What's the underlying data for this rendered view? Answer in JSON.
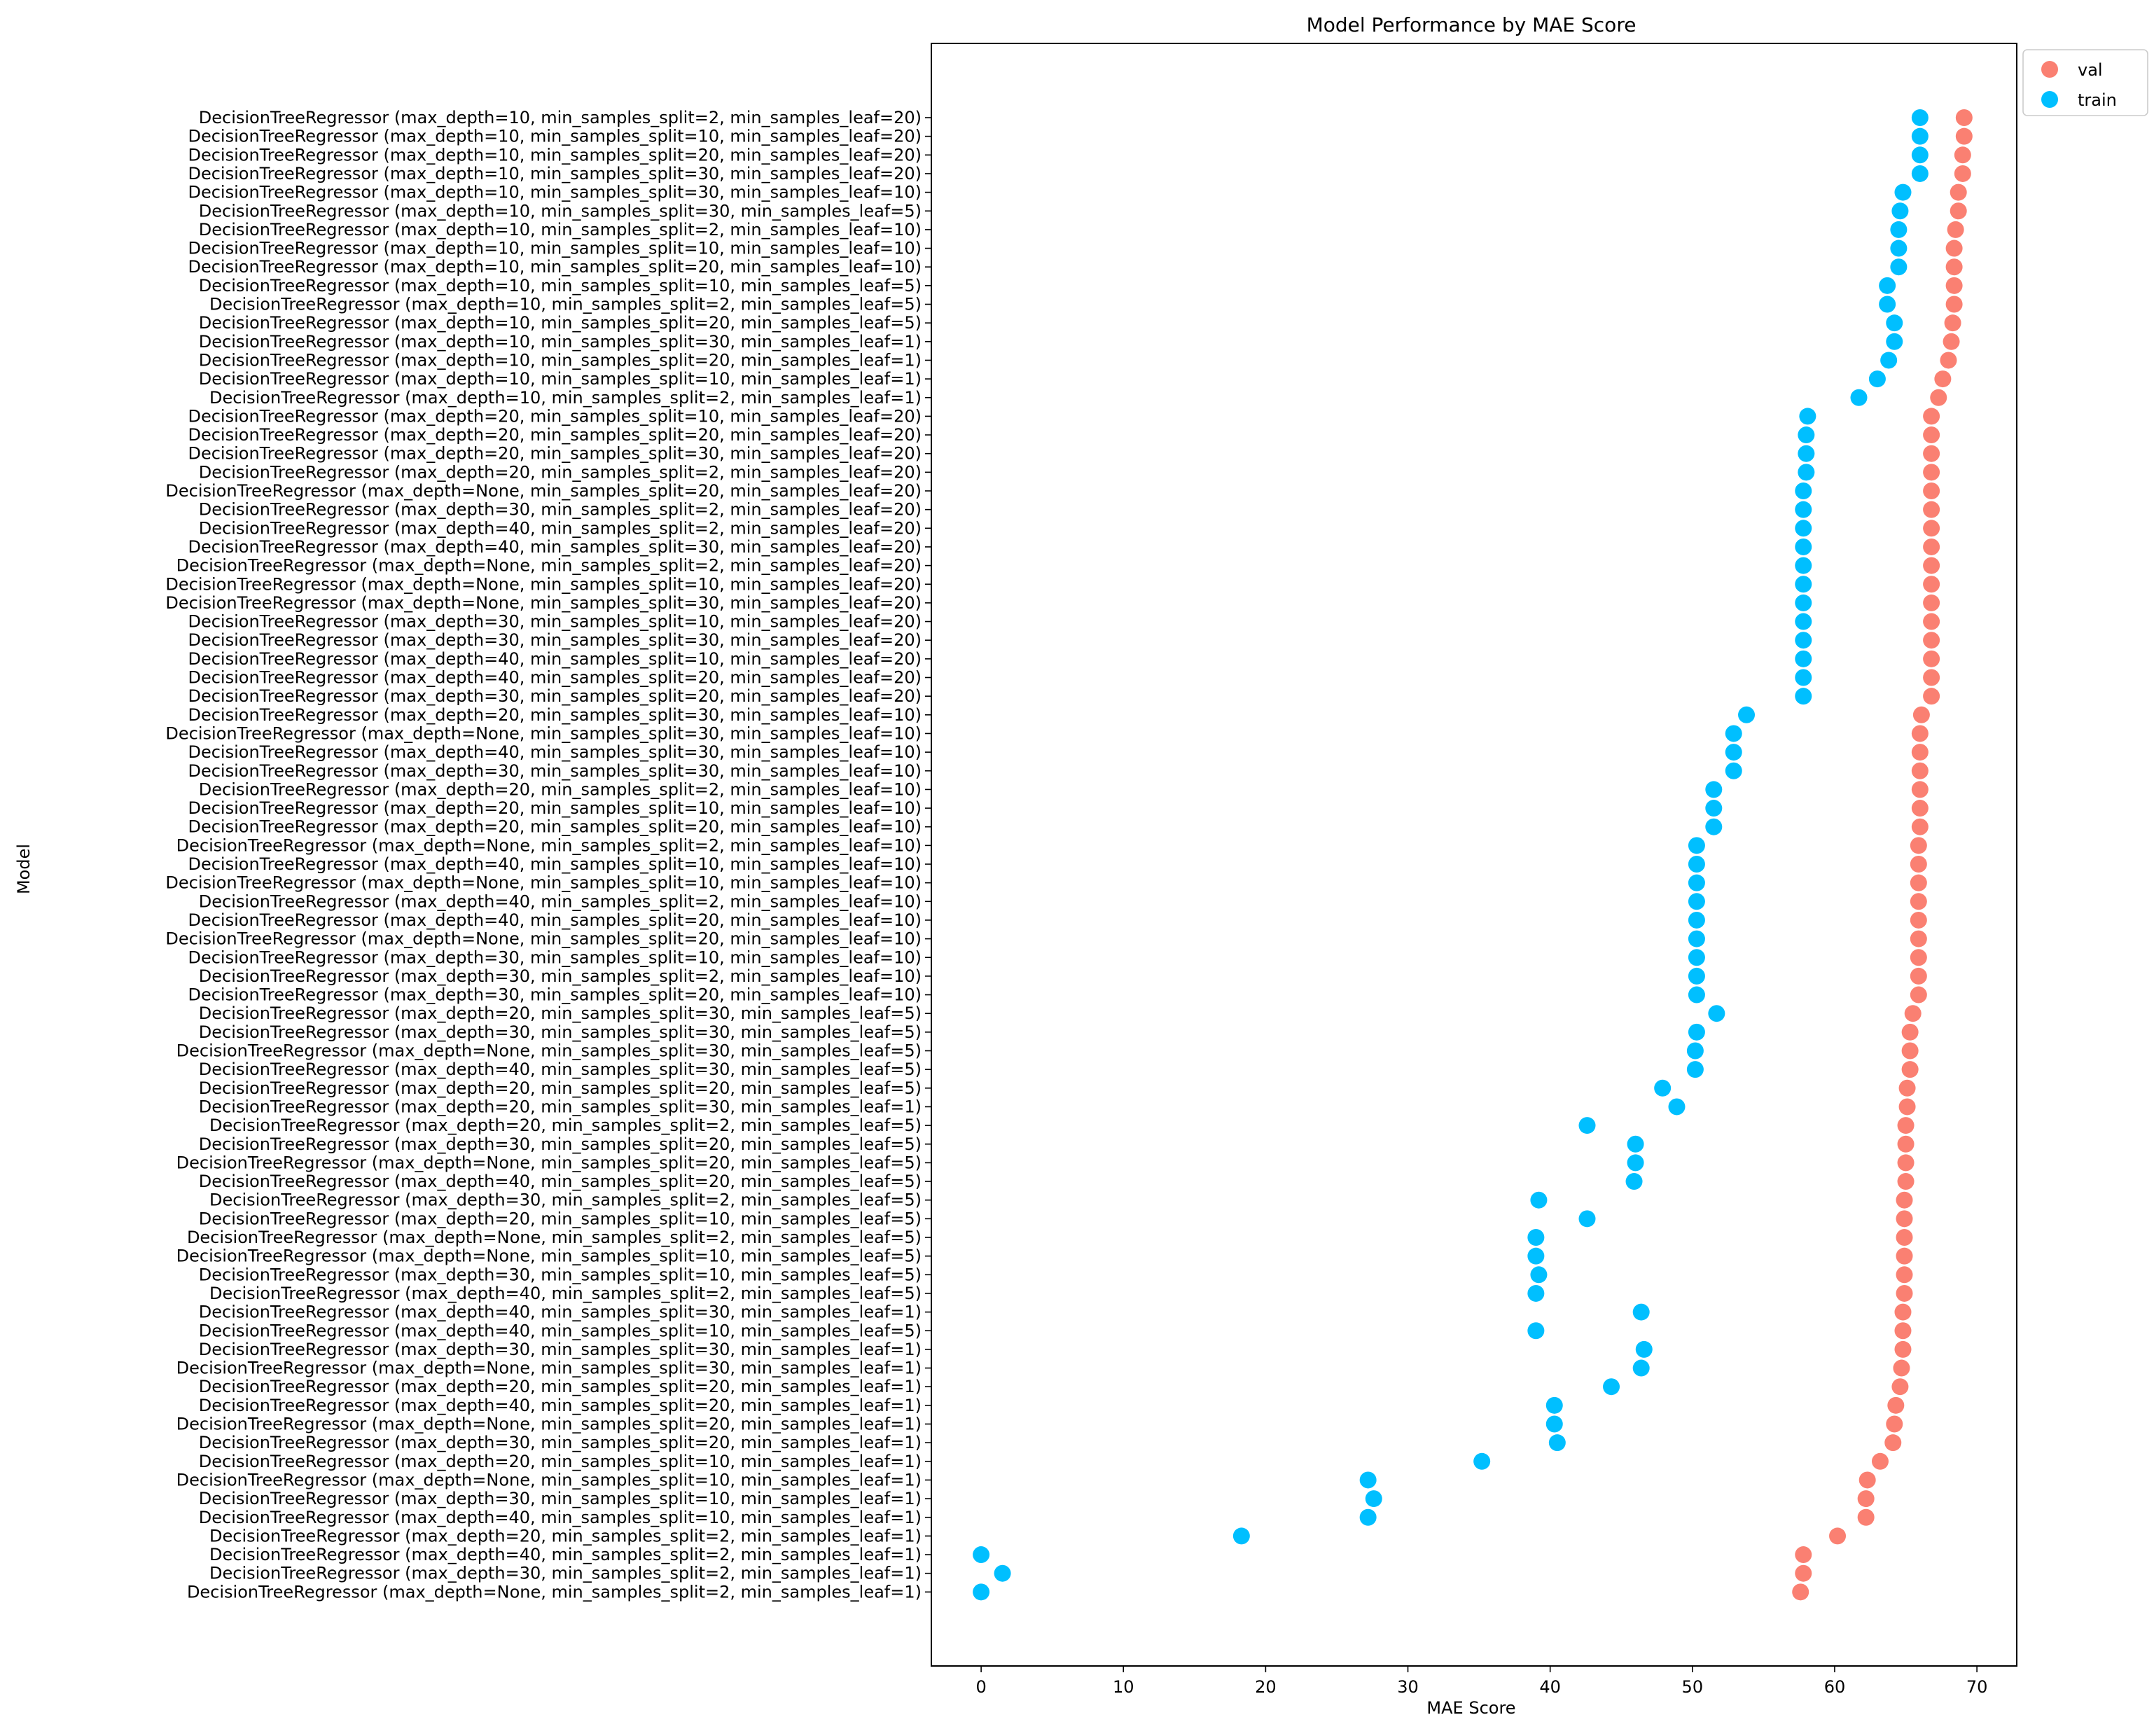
{
  "chart_data": {
    "type": "scatter",
    "title": "Model Performance by MAE Score",
    "xlabel": "MAE Score",
    "ylabel": "Model",
    "xlim": [
      -3.5,
      72.8
    ],
    "xticks": [
      0,
      10,
      20,
      30,
      40,
      50,
      60,
      70
    ],
    "grid": false,
    "legend_position": "outside-top-right",
    "series": [
      {
        "name": "val",
        "color": "#fa8072"
      },
      {
        "name": "train",
        "color": "#00bfff"
      }
    ],
    "categories": [
      "DecisionTreeRegressor (max_depth=10, min_samples_split=2, min_samples_leaf=20)",
      "DecisionTreeRegressor (max_depth=10, min_samples_split=10, min_samples_leaf=20)",
      "DecisionTreeRegressor (max_depth=10, min_samples_split=20, min_samples_leaf=20)",
      "DecisionTreeRegressor (max_depth=10, min_samples_split=30, min_samples_leaf=20)",
      "DecisionTreeRegressor (max_depth=10, min_samples_split=30, min_samples_leaf=10)",
      "DecisionTreeRegressor (max_depth=10, min_samples_split=30, min_samples_leaf=5)",
      "DecisionTreeRegressor (max_depth=10, min_samples_split=2, min_samples_leaf=10)",
      "DecisionTreeRegressor (max_depth=10, min_samples_split=10, min_samples_leaf=10)",
      "DecisionTreeRegressor (max_depth=10, min_samples_split=20, min_samples_leaf=10)",
      "DecisionTreeRegressor (max_depth=10, min_samples_split=10, min_samples_leaf=5)",
      "DecisionTreeRegressor (max_depth=10, min_samples_split=2, min_samples_leaf=5)",
      "DecisionTreeRegressor (max_depth=10, min_samples_split=20, min_samples_leaf=5)",
      "DecisionTreeRegressor (max_depth=10, min_samples_split=30, min_samples_leaf=1)",
      "DecisionTreeRegressor (max_depth=10, min_samples_split=20, min_samples_leaf=1)",
      "DecisionTreeRegressor (max_depth=10, min_samples_split=10, min_samples_leaf=1)",
      "DecisionTreeRegressor (max_depth=10, min_samples_split=2, min_samples_leaf=1)",
      "DecisionTreeRegressor (max_depth=20, min_samples_split=10, min_samples_leaf=20)",
      "DecisionTreeRegressor (max_depth=20, min_samples_split=20, min_samples_leaf=20)",
      "DecisionTreeRegressor (max_depth=20, min_samples_split=30, min_samples_leaf=20)",
      "DecisionTreeRegressor (max_depth=20, min_samples_split=2, min_samples_leaf=20)",
      "DecisionTreeRegressor (max_depth=None, min_samples_split=20, min_samples_leaf=20)",
      "DecisionTreeRegressor (max_depth=30, min_samples_split=2, min_samples_leaf=20)",
      "DecisionTreeRegressor (max_depth=40, min_samples_split=2, min_samples_leaf=20)",
      "DecisionTreeRegressor (max_depth=40, min_samples_split=30, min_samples_leaf=20)",
      "DecisionTreeRegressor (max_depth=None, min_samples_split=2, min_samples_leaf=20)",
      "DecisionTreeRegressor (max_depth=None, min_samples_split=10, min_samples_leaf=20)",
      "DecisionTreeRegressor (max_depth=None, min_samples_split=30, min_samples_leaf=20)",
      "DecisionTreeRegressor (max_depth=30, min_samples_split=10, min_samples_leaf=20)",
      "DecisionTreeRegressor (max_depth=30, min_samples_split=30, min_samples_leaf=20)",
      "DecisionTreeRegressor (max_depth=40, min_samples_split=10, min_samples_leaf=20)",
      "DecisionTreeRegressor (max_depth=40, min_samples_split=20, min_samples_leaf=20)",
      "DecisionTreeRegressor (max_depth=30, min_samples_split=20, min_samples_leaf=20)",
      "DecisionTreeRegressor (max_depth=20, min_samples_split=30, min_samples_leaf=10)",
      "DecisionTreeRegressor (max_depth=None, min_samples_split=30, min_samples_leaf=10)",
      "DecisionTreeRegressor (max_depth=40, min_samples_split=30, min_samples_leaf=10)",
      "DecisionTreeRegressor (max_depth=30, min_samples_split=30, min_samples_leaf=10)",
      "DecisionTreeRegressor (max_depth=20, min_samples_split=2, min_samples_leaf=10)",
      "DecisionTreeRegressor (max_depth=20, min_samples_split=10, min_samples_leaf=10)",
      "DecisionTreeRegressor (max_depth=20, min_samples_split=20, min_samples_leaf=10)",
      "DecisionTreeRegressor (max_depth=None, min_samples_split=2, min_samples_leaf=10)",
      "DecisionTreeRegressor (max_depth=40, min_samples_split=10, min_samples_leaf=10)",
      "DecisionTreeRegressor (max_depth=None, min_samples_split=10, min_samples_leaf=10)",
      "DecisionTreeRegressor (max_depth=40, min_samples_split=2, min_samples_leaf=10)",
      "DecisionTreeRegressor (max_depth=40, min_samples_split=20, min_samples_leaf=10)",
      "DecisionTreeRegressor (max_depth=None, min_samples_split=20, min_samples_leaf=10)",
      "DecisionTreeRegressor (max_depth=30, min_samples_split=10, min_samples_leaf=10)",
      "DecisionTreeRegressor (max_depth=30, min_samples_split=2, min_samples_leaf=10)",
      "DecisionTreeRegressor (max_depth=30, min_samples_split=20, min_samples_leaf=10)",
      "DecisionTreeRegressor (max_depth=20, min_samples_split=30, min_samples_leaf=5)",
      "DecisionTreeRegressor (max_depth=30, min_samples_split=30, min_samples_leaf=5)",
      "DecisionTreeRegressor (max_depth=None, min_samples_split=30, min_samples_leaf=5)",
      "DecisionTreeRegressor (max_depth=40, min_samples_split=30, min_samples_leaf=5)",
      "DecisionTreeRegressor (max_depth=20, min_samples_split=20, min_samples_leaf=5)",
      "DecisionTreeRegressor (max_depth=20, min_samples_split=30, min_samples_leaf=1)",
      "DecisionTreeRegressor (max_depth=20, min_samples_split=2, min_samples_leaf=5)",
      "DecisionTreeRegressor (max_depth=30, min_samples_split=20, min_samples_leaf=5)",
      "DecisionTreeRegressor (max_depth=None, min_samples_split=20, min_samples_leaf=5)",
      "DecisionTreeRegressor (max_depth=40, min_samples_split=20, min_samples_leaf=5)",
      "DecisionTreeRegressor (max_depth=30, min_samples_split=2, min_samples_leaf=5)",
      "DecisionTreeRegressor (max_depth=20, min_samples_split=10, min_samples_leaf=5)",
      "DecisionTreeRegressor (max_depth=None, min_samples_split=2, min_samples_leaf=5)",
      "DecisionTreeRegressor (max_depth=None, min_samples_split=10, min_samples_leaf=5)",
      "DecisionTreeRegressor (max_depth=30, min_samples_split=10, min_samples_leaf=5)",
      "DecisionTreeRegressor (max_depth=40, min_samples_split=2, min_samples_leaf=5)",
      "DecisionTreeRegressor (max_depth=40, min_samples_split=30, min_samples_leaf=1)",
      "DecisionTreeRegressor (max_depth=40, min_samples_split=10, min_samples_leaf=5)",
      "DecisionTreeRegressor (max_depth=30, min_samples_split=30, min_samples_leaf=1)",
      "DecisionTreeRegressor (max_depth=None, min_samples_split=30, min_samples_leaf=1)",
      "DecisionTreeRegressor (max_depth=20, min_samples_split=20, min_samples_leaf=1)",
      "DecisionTreeRegressor (max_depth=40, min_samples_split=20, min_samples_leaf=1)",
      "DecisionTreeRegressor (max_depth=None, min_samples_split=20, min_samples_leaf=1)",
      "DecisionTreeRegressor (max_depth=30, min_samples_split=20, min_samples_leaf=1)",
      "DecisionTreeRegressor (max_depth=20, min_samples_split=10, min_samples_leaf=1)",
      "DecisionTreeRegressor (max_depth=None, min_samples_split=10, min_samples_leaf=1)",
      "DecisionTreeRegressor (max_depth=30, min_samples_split=10, min_samples_leaf=1)",
      "DecisionTreeRegressor (max_depth=40, min_samples_split=10, min_samples_leaf=1)",
      "DecisionTreeRegressor (max_depth=20, min_samples_split=2, min_samples_leaf=1)",
      "DecisionTreeRegressor (max_depth=40, min_samples_split=2, min_samples_leaf=1)",
      "DecisionTreeRegressor (max_depth=30, min_samples_split=2, min_samples_leaf=1)",
      "DecisionTreeRegressor (max_depth=None, min_samples_split=2, min_samples_leaf=1)"
    ],
    "val": [
      69.1,
      69.1,
      69.0,
      69.0,
      68.7,
      68.7,
      68.5,
      68.4,
      68.4,
      68.4,
      68.4,
      68.3,
      68.2,
      68.0,
      67.6,
      67.3,
      66.8,
      66.8,
      66.8,
      66.8,
      66.8,
      66.8,
      66.8,
      66.8,
      66.8,
      66.8,
      66.8,
      66.8,
      66.8,
      66.8,
      66.8,
      66.8,
      66.1,
      66.0,
      66.0,
      66.0,
      66.0,
      66.0,
      66.0,
      65.9,
      65.9,
      65.9,
      65.9,
      65.9,
      65.9,
      65.9,
      65.9,
      65.9,
      65.5,
      65.3,
      65.3,
      65.3,
      65.1,
      65.1,
      65.0,
      65.0,
      65.0,
      65.0,
      64.9,
      64.9,
      64.9,
      64.9,
      64.9,
      64.9,
      64.8,
      64.8,
      64.8,
      64.7,
      64.6,
      64.3,
      64.2,
      64.1,
      63.2,
      62.3,
      62.2,
      62.2,
      60.2,
      57.8,
      57.8,
      57.6
    ],
    "train": [
      66.0,
      66.0,
      66.0,
      66.0,
      64.8,
      64.6,
      64.5,
      64.5,
      64.5,
      63.7,
      63.7,
      64.2,
      64.2,
      63.8,
      63.0,
      61.7,
      58.1,
      58.0,
      58.0,
      58.0,
      57.8,
      57.8,
      57.8,
      57.8,
      57.8,
      57.8,
      57.8,
      57.8,
      57.8,
      57.8,
      57.8,
      57.8,
      53.8,
      52.9,
      52.9,
      52.9,
      51.5,
      51.5,
      51.5,
      50.3,
      50.3,
      50.3,
      50.3,
      50.3,
      50.3,
      50.3,
      50.3,
      50.3,
      51.7,
      50.3,
      50.2,
      50.2,
      47.9,
      48.9,
      42.6,
      46.0,
      46.0,
      45.9,
      39.2,
      42.6,
      39.0,
      39.0,
      39.2,
      39.0,
      46.4,
      39.0,
      46.6,
      46.4,
      44.3,
      40.3,
      40.3,
      40.5,
      35.2,
      27.2,
      27.6,
      27.2,
      18.3,
      0.0,
      1.5,
      0.0
    ]
  }
}
